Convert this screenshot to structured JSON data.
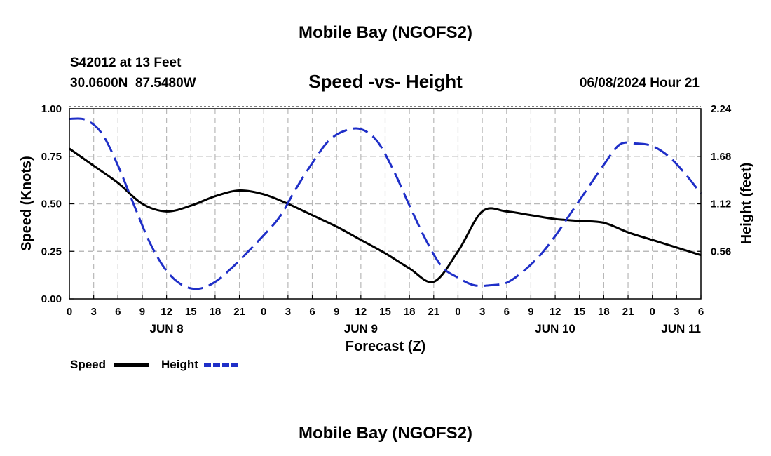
{
  "page": {
    "title": "Mobile Bay (NGOFS2)",
    "footer_title": "Mobile Bay (NGOFS2)"
  },
  "header": {
    "station": "S42012 at 13 Feet",
    "coords": "30.0600N  87.5480W",
    "timestamp": "06/08/2024 Hour 21"
  },
  "colors": {
    "speed": "#000000",
    "height": "#1f2fc8",
    "grid": "#b8b8b8"
  },
  "chart_data": {
    "type": "line",
    "title": "Speed -vs- Height",
    "xlabel": "Forecast (Z)",
    "ylabel": "Speed (Knots)",
    "y2label": "Height (feet)",
    "x_unit": "hours from 06/08 00Z",
    "xlim": [
      0,
      78
    ],
    "ylim": [
      0,
      1.0
    ],
    "y2lim": [
      0,
      2.24
    ],
    "grid": true,
    "legend_position": "bottom-left",
    "x_tick_values": [
      0,
      3,
      6,
      9,
      12,
      15,
      18,
      21,
      24,
      27,
      30,
      33,
      36,
      39,
      42,
      45,
      48,
      51,
      54,
      57,
      60,
      63,
      66,
      69,
      72,
      75,
      78
    ],
    "x_tick_labels": [
      "0",
      "3",
      "6",
      "9",
      "12",
      "15",
      "18",
      "21",
      "0",
      "3",
      "6",
      "9",
      "12",
      "15",
      "18",
      "21",
      "0",
      "3",
      "6",
      "9",
      "12",
      "15",
      "18",
      "21",
      "0",
      "3",
      "6"
    ],
    "day_labels": [
      {
        "label": "JUN 8",
        "x": 12
      },
      {
        "label": "JUN 9",
        "x": 36
      },
      {
        "label": "JUN 10",
        "x": 60
      },
      {
        "label": "JUN 11",
        "x": 78
      }
    ],
    "y_ticks": [
      0,
      0.25,
      0.5,
      0.75,
      1.0
    ],
    "y_tick_labels": [
      "0.00",
      "0.25",
      "0.50",
      "0.75",
      "1.00"
    ],
    "y2_ticks": [
      0.56,
      1.12,
      1.68,
      2.24
    ],
    "y2_tick_labels": [
      "0.56",
      "1.12",
      "1.68",
      "2.24"
    ],
    "series": [
      {
        "name": "Speed",
        "axis": "left",
        "style": "solid",
        "x": [
          0,
          3,
          6,
          9,
          12,
          15,
          18,
          21,
          24,
          27,
          30,
          33,
          36,
          39,
          42,
          45,
          48,
          51,
          54,
          57,
          60,
          63,
          66,
          69,
          72,
          75,
          78
        ],
        "values": [
          0.79,
          0.7,
          0.61,
          0.5,
          0.46,
          0.49,
          0.54,
          0.57,
          0.55,
          0.5,
          0.44,
          0.38,
          0.31,
          0.24,
          0.16,
          0.09,
          0.25,
          0.46,
          0.46,
          0.44,
          0.42,
          0.41,
          0.4,
          0.35,
          0.31,
          0.27,
          0.23
        ]
      },
      {
        "name": "Height",
        "axis": "right",
        "style": "dashed",
        "x": [
          0,
          2,
          4,
          6,
          8,
          10,
          12,
          14,
          16,
          18,
          20,
          22,
          24,
          26,
          28,
          30,
          32,
          34,
          36,
          38,
          40,
          42,
          44,
          46,
          48,
          50,
          52,
          54,
          56,
          58,
          60,
          62,
          64,
          66,
          68,
          70,
          72,
          74,
          76,
          78
        ],
        "values": [
          2.12,
          2.11,
          1.95,
          1.57,
          1.1,
          0.65,
          0.33,
          0.16,
          0.12,
          0.2,
          0.36,
          0.55,
          0.75,
          0.97,
          1.3,
          1.6,
          1.86,
          1.98,
          2.0,
          1.86,
          1.52,
          1.1,
          0.7,
          0.38,
          0.25,
          0.16,
          0.16,
          0.19,
          0.32,
          0.5,
          0.74,
          1.02,
          1.3,
          1.58,
          1.82,
          1.83,
          1.8,
          1.68,
          1.48,
          1.24
        ]
      }
    ]
  }
}
